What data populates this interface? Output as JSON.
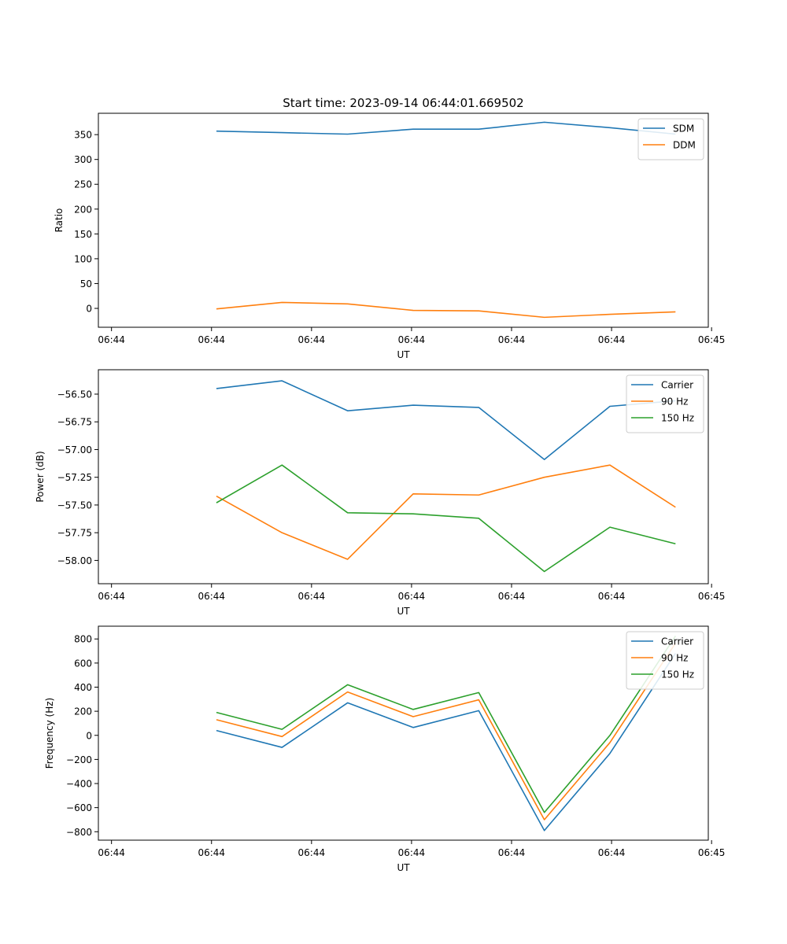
{
  "figure_title": "Start time: 2023-09-14 06:44:01.669502",
  "colors": {
    "c1": "#1f77b4",
    "c2": "#ff7f0e",
    "c3": "#2ca02c",
    "axis": "#000000"
  },
  "chart_data": [
    {
      "type": "line",
      "title": "Start time: 2023-09-14 06:44:01.669502",
      "xlabel": "UT",
      "ylabel": "Ratio",
      "x": [
        1,
        2,
        3,
        4,
        5,
        6,
        7,
        8
      ],
      "xlim": [
        -0.8,
        8.5
      ],
      "ylim": [
        -38,
        393
      ],
      "xticks": [
        -0.6,
        0.925,
        2.45,
        3.975,
        5.5,
        7.025,
        8.55
      ],
      "xtick_labels": [
        "06:44",
        "06:44",
        "06:44",
        "06:44",
        "06:44",
        "06:44",
        "06:45"
      ],
      "yticks": [
        0,
        50,
        100,
        150,
        200,
        250,
        300,
        350
      ],
      "ytick_labels": [
        "0",
        "50",
        "100",
        "150",
        "200",
        "250",
        "300",
        "350"
      ],
      "legend": "top-right",
      "series": [
        {
          "name": "SDM",
          "color": "#1f77b4",
          "values": [
            357,
            354,
            351,
            361,
            361,
            375,
            364,
            351
          ]
        },
        {
          "name": "DDM",
          "color": "#ff7f0e",
          "values": [
            -1,
            12,
            9,
            -4,
            -5,
            -18,
            -12,
            -7
          ]
        }
      ]
    },
    {
      "type": "line",
      "xlabel": "UT",
      "ylabel": "Power (dB)",
      "x": [
        1,
        2,
        3,
        4,
        5,
        6,
        7,
        8
      ],
      "xlim": [
        -0.8,
        8.5
      ],
      "ylim": [
        -58.21,
        -56.28
      ],
      "xticks": [
        -0.6,
        0.925,
        2.45,
        3.975,
        5.5,
        7.025,
        8.55
      ],
      "xtick_labels": [
        "06:44",
        "06:44",
        "06:44",
        "06:44",
        "06:44",
        "06:44",
        "06:45"
      ],
      "yticks": [
        -58.0,
        -57.75,
        -57.5,
        -57.25,
        -57.0,
        -56.75,
        -56.5
      ],
      "ytick_labels": [
        "−58.00",
        "−57.75",
        "−57.50",
        "−57.25",
        "−57.00",
        "−56.75",
        "−56.50"
      ],
      "legend": "top-right",
      "series": [
        {
          "name": "Carrier",
          "color": "#1f77b4",
          "values": [
            -56.45,
            -56.38,
            -56.65,
            -56.6,
            -56.62,
            -57.09,
            -56.61,
            -56.56
          ]
        },
        {
          "name": "90 Hz",
          "color": "#ff7f0e",
          "values": [
            -57.42,
            -57.75,
            -57.99,
            -57.4,
            -57.41,
            -57.25,
            -57.14,
            -57.52
          ]
        },
        {
          "name": "150 Hz",
          "color": "#2ca02c",
          "values": [
            -57.48,
            -57.14,
            -57.57,
            -57.58,
            -57.62,
            -58.1,
            -57.7,
            -57.85
          ]
        }
      ]
    },
    {
      "type": "line",
      "xlabel": "UT",
      "ylabel": "Frequency (Hz)",
      "x": [
        1,
        2,
        3,
        4,
        5,
        6,
        7,
        8
      ],
      "xlim": [
        -0.8,
        8.5
      ],
      "ylim": [
        -870,
        906
      ],
      "xticks": [
        -0.6,
        0.925,
        2.45,
        3.975,
        5.5,
        7.025,
        8.55
      ],
      "xtick_labels": [
        "06:44",
        "06:44",
        "06:44",
        "06:44",
        "06:44",
        "06:44",
        "06:45"
      ],
      "yticks": [
        -800,
        -600,
        -400,
        -200,
        0,
        200,
        400,
        600,
        800
      ],
      "ytick_labels": [
        "−800",
        "−600",
        "−400",
        "−200",
        "0",
        "200",
        "400",
        "600",
        "800"
      ],
      "legend": "top-right",
      "series": [
        {
          "name": "Carrier",
          "color": "#1f77b4",
          "values": [
            40,
            -100,
            270,
            65,
            205,
            -790,
            -150,
            680
          ]
        },
        {
          "name": "90 Hz",
          "color": "#ff7f0e",
          "values": [
            130,
            -10,
            360,
            155,
            295,
            -700,
            -60,
            765
          ]
        },
        {
          "name": "150 Hz",
          "color": "#2ca02c",
          "values": [
            190,
            50,
            420,
            215,
            355,
            -640,
            0,
            825
          ]
        }
      ]
    }
  ]
}
